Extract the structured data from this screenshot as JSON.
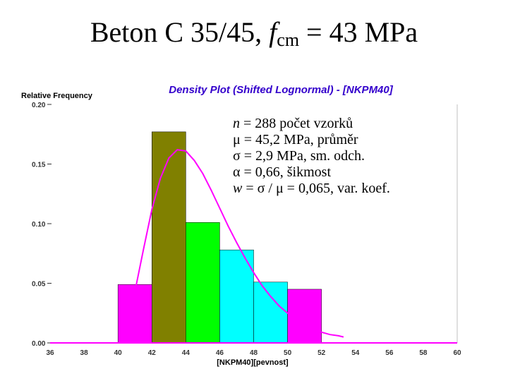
{
  "slide": {
    "title_prefix": "Beton C 35/45, ",
    "title_f": "f",
    "title_sub": "cm",
    "title_suffix": " = 43 MPa"
  },
  "stats": {
    "n": {
      "symbol": "n",
      "text": " = 288 počet vzorků"
    },
    "mu": {
      "symbol": "μ",
      "text": " = 45,2 MPa, průměr"
    },
    "sigma": {
      "symbol": "σ",
      "text": " = 2,9 MPa, sm. odch."
    },
    "alpha": {
      "symbol": "α",
      "text": " = 0,66, šikmost"
    },
    "w": {
      "symbol": "w",
      "text": " = σ / μ =  0,065, var. koef."
    }
  },
  "chart_data": {
    "type": "bar",
    "title": "Density Plot (Shifted Lognormal) - [NKPM40]",
    "xlabel": "[NKPM40][pevnost]",
    "ylabel": "Relative Frequency",
    "xlim": [
      36,
      60
    ],
    "ylim": [
      0,
      0.2
    ],
    "x_ticks": [
      "36",
      "38",
      "40",
      "42",
      "44",
      "46",
      "48",
      "50",
      "52",
      "54",
      "56",
      "58",
      "60"
    ],
    "y_ticks": [
      "0.00",
      "0.05",
      "0.10",
      "0.15",
      "0.20"
    ],
    "bars": [
      {
        "x0": 40,
        "x1": 42,
        "value": 0.049,
        "color": "#ff00ff"
      },
      {
        "x0": 42,
        "x1": 44,
        "value": 0.177,
        "color": "#808000"
      },
      {
        "x0": 44,
        "x1": 46,
        "value": 0.101,
        "color": "#00ff00"
      },
      {
        "x0": 46,
        "x1": 48,
        "value": 0.078,
        "color": "#00ffff"
      },
      {
        "x0": 48,
        "x1": 50,
        "value": 0.051,
        "color": "#00ffff"
      },
      {
        "x0": 50,
        "x1": 52,
        "value": 0.045,
        "color": "#ff00ff"
      }
    ],
    "curve": {
      "type": "shifted lognormal density",
      "color": "#ff00ff",
      "x": [
        40.5,
        41.0,
        41.5,
        42.0,
        42.5,
        43.0,
        43.5,
        44.0,
        44.5,
        45.0,
        45.5,
        46.0,
        46.5,
        47.0,
        47.5,
        48.0,
        48.5,
        49.0,
        49.5,
        50.0,
        50.5,
        51.0,
        51.5,
        52.0,
        52.5,
        53.0,
        53.3
      ],
      "y": [
        0.016,
        0.043,
        0.078,
        0.112,
        0.138,
        0.155,
        0.162,
        0.161,
        0.153,
        0.142,
        0.128,
        0.113,
        0.098,
        0.084,
        0.071,
        0.059,
        0.048,
        0.039,
        0.031,
        0.025,
        0.019,
        0.015,
        0.011,
        0.009,
        0.007,
        0.006,
        0.005
      ]
    },
    "baseline_color": "#ff00ff",
    "legend": "none",
    "grid": false
  }
}
